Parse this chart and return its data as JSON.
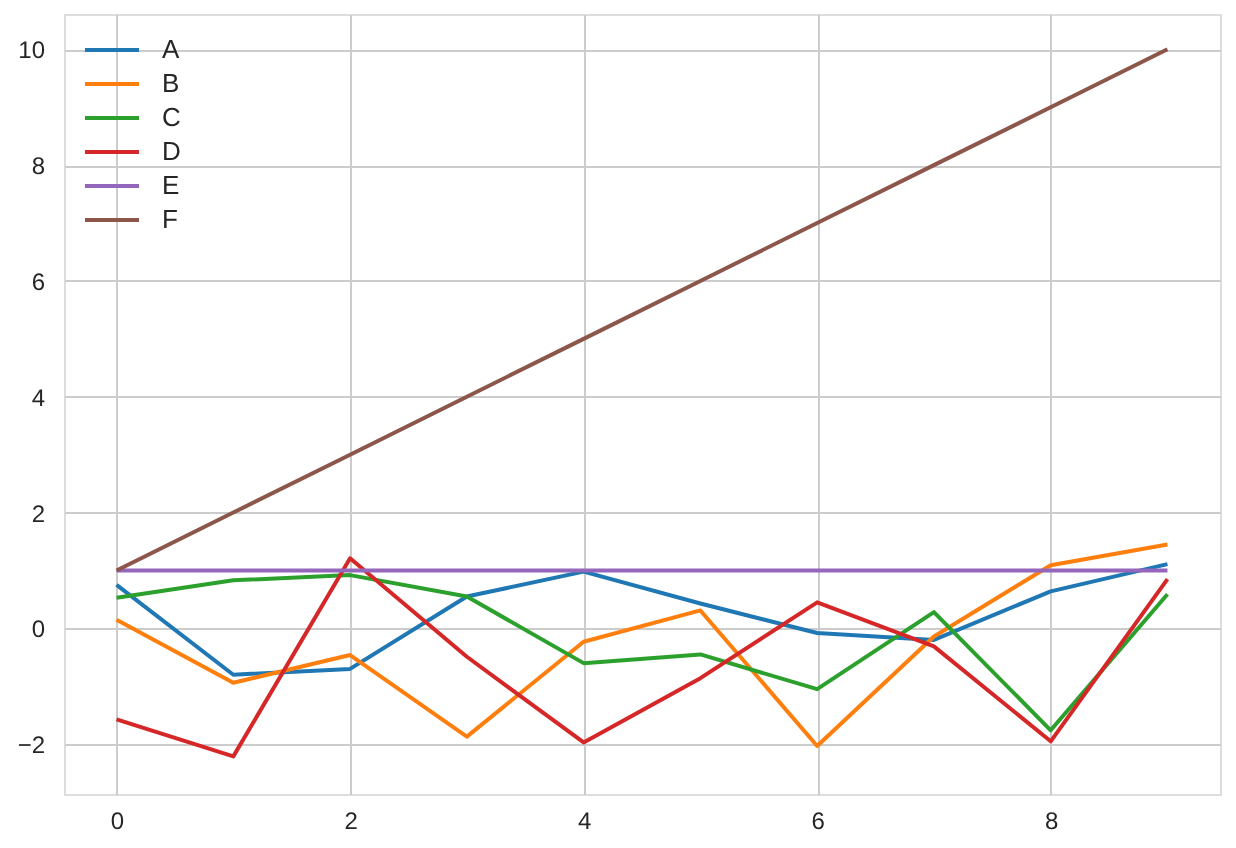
{
  "chart_data": {
    "type": "line",
    "x": [
      0,
      1,
      2,
      3,
      4,
      5,
      6,
      7,
      8,
      9
    ],
    "series": [
      {
        "name": "A",
        "color": "#1f77b4",
        "values": [
          0.75,
          -0.8,
          -0.7,
          0.55,
          0.98,
          0.43,
          -0.08,
          -0.2,
          0.64,
          1.11
        ]
      },
      {
        "name": "B",
        "color": "#ff7f0e",
        "values": [
          0.15,
          -0.94,
          -0.46,
          -1.87,
          -0.23,
          0.31,
          -2.03,
          -0.14,
          1.09,
          1.45
        ]
      },
      {
        "name": "C",
        "color": "#2ca02c",
        "values": [
          0.53,
          0.83,
          0.92,
          0.55,
          -0.6,
          -0.45,
          -1.05,
          0.28,
          -1.76,
          0.59
        ]
      },
      {
        "name": "D",
        "color": "#d62728",
        "values": [
          -1.57,
          -2.21,
          1.21,
          -0.49,
          -1.97,
          -0.86,
          0.45,
          -0.31,
          -1.95,
          0.85
        ]
      },
      {
        "name": "E",
        "color": "#9467bd",
        "values": [
          1,
          1,
          1,
          1,
          1,
          1,
          1,
          1,
          1,
          1
        ]
      },
      {
        "name": "F",
        "color": "#8c564b",
        "values": [
          1,
          2,
          3,
          4,
          5,
          6,
          7,
          8,
          9,
          10
        ]
      }
    ],
    "xlim": [
      -0.45,
      9.45
    ],
    "ylim": [
      -2.86,
      10.61
    ],
    "xticks": [
      0,
      2,
      4,
      6,
      8
    ],
    "yticks": [
      -2,
      0,
      2,
      4,
      6,
      8,
      10
    ],
    "grid": true,
    "legend": "top left"
  }
}
